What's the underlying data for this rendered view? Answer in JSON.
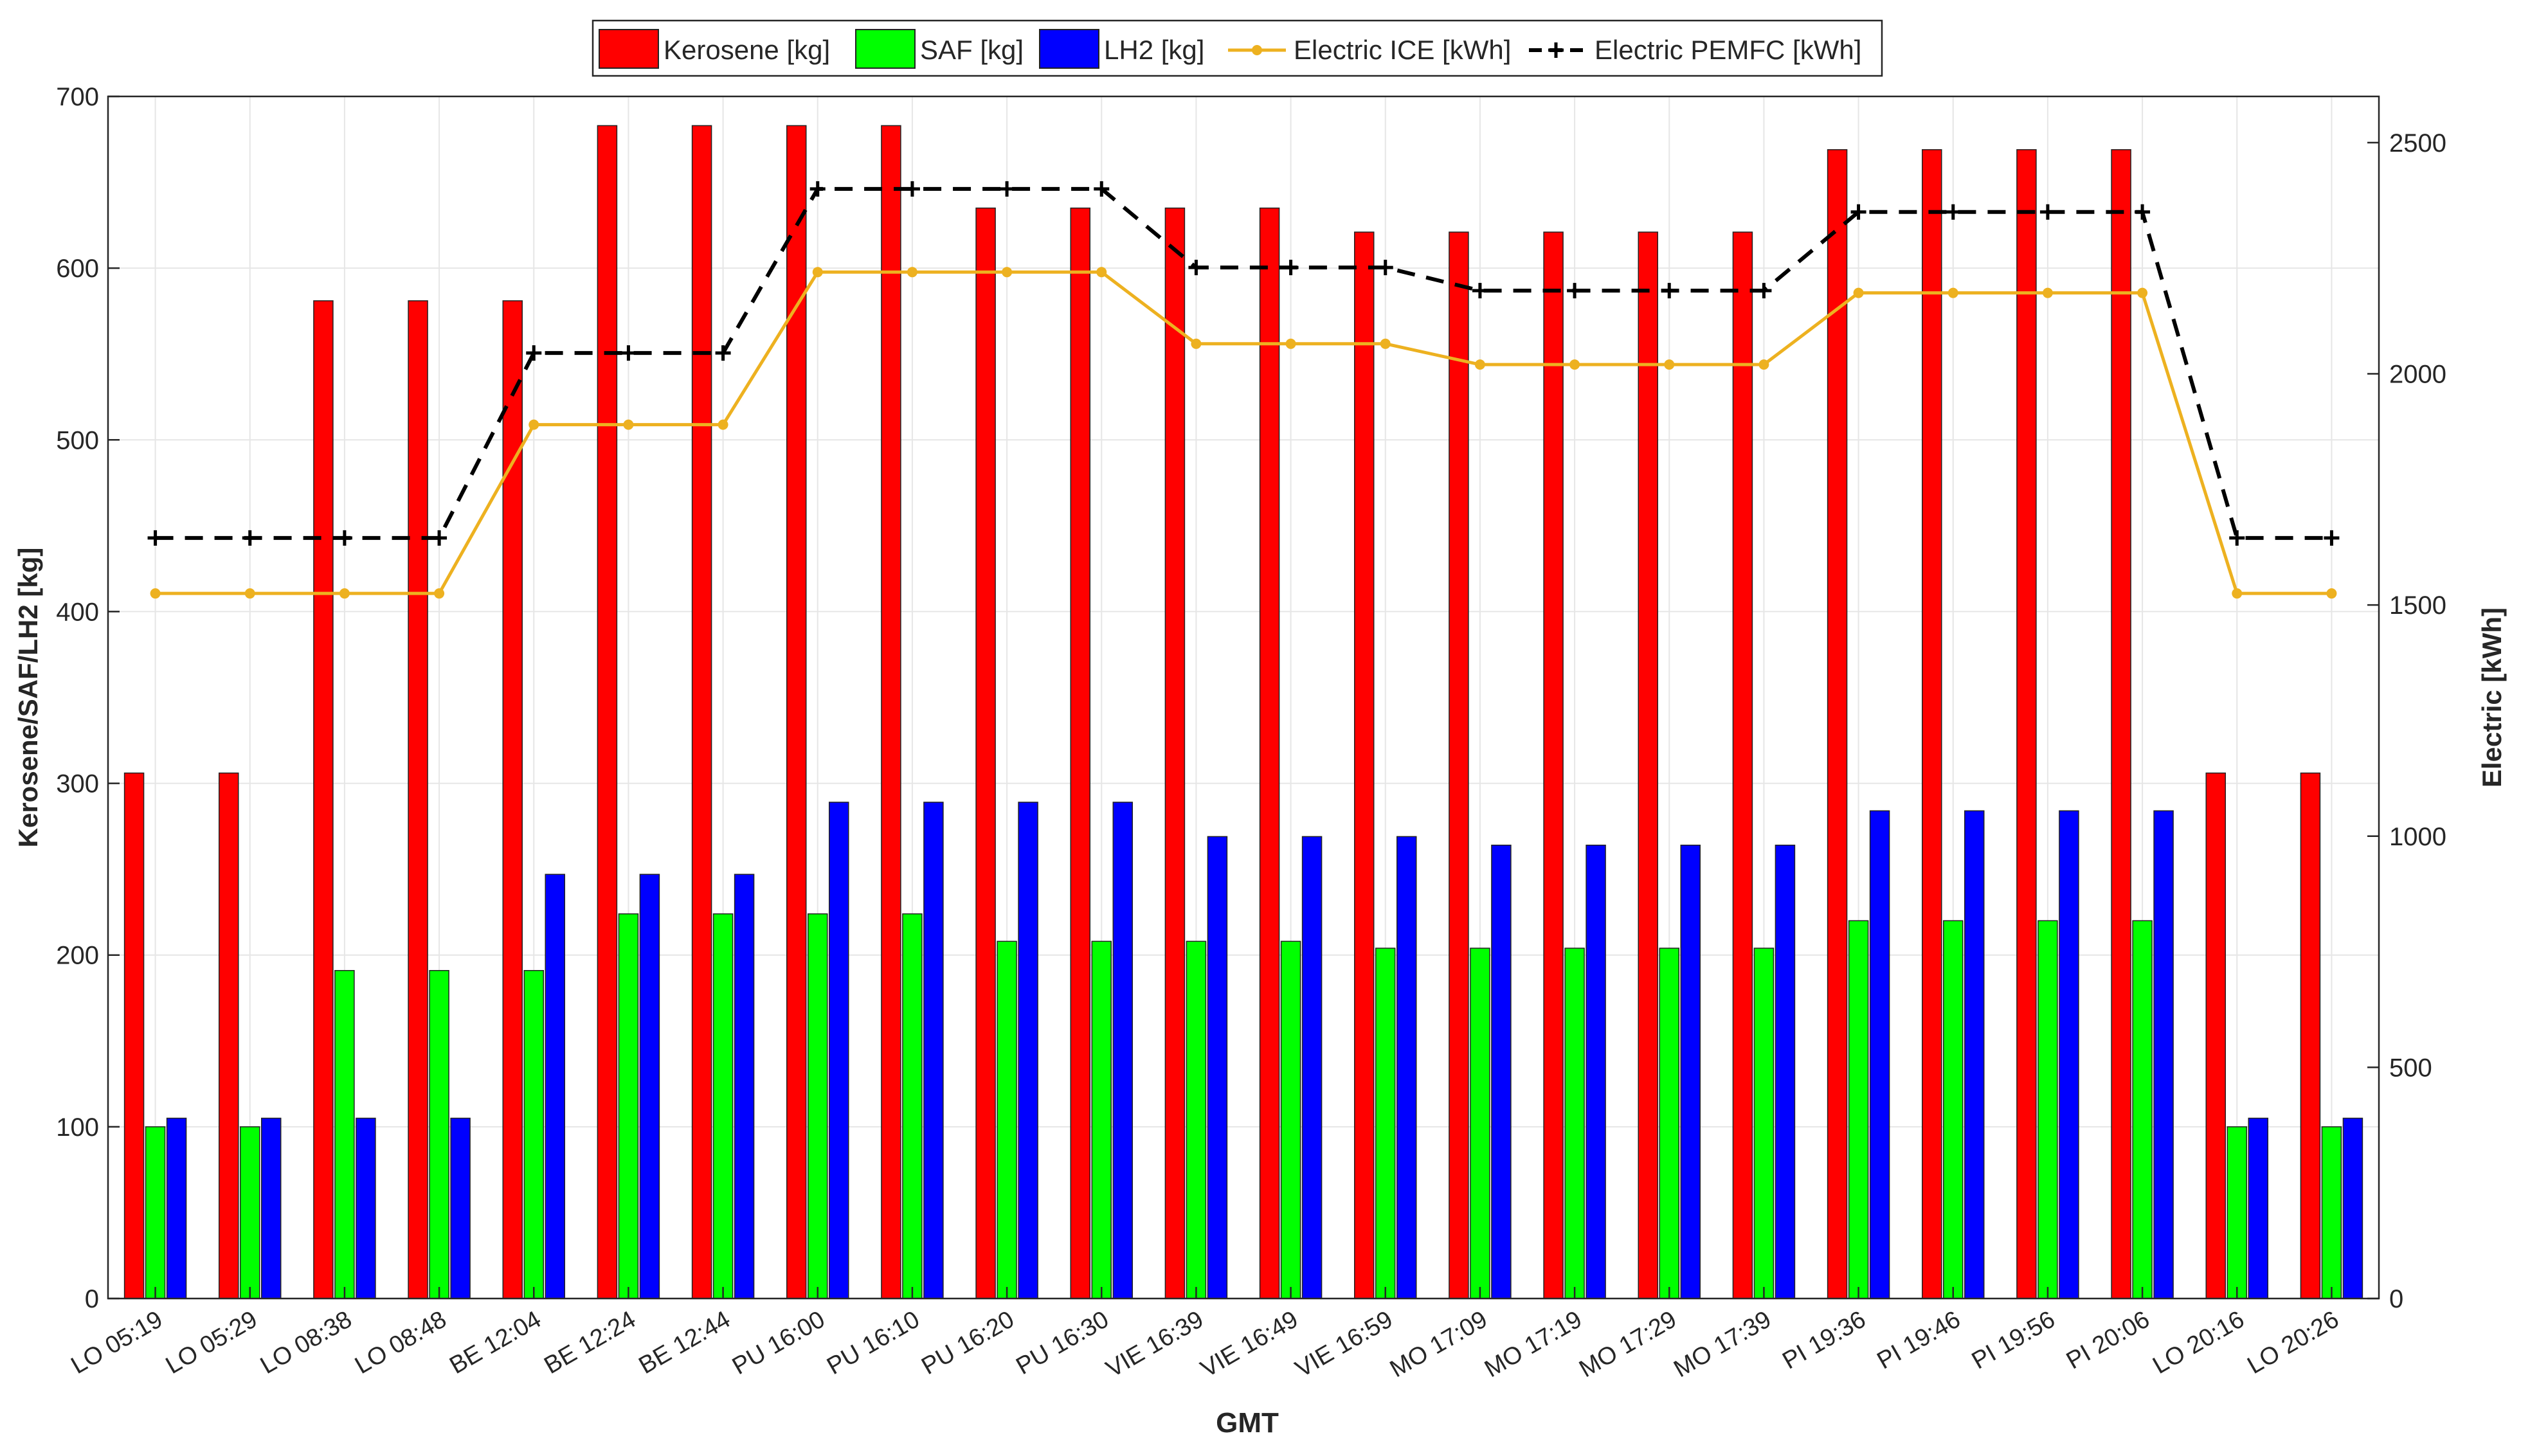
{
  "chart_data": {
    "type": "bar",
    "title": "",
    "xlabel": "GMT",
    "ylabel": "Kerosene/SAF/LH2 [kg]",
    "y2label": "Electric [kWh]",
    "ylim": [
      0,
      700
    ],
    "y2lim": [
      0,
      2600
    ],
    "yticks": [
      0,
      100,
      200,
      300,
      400,
      500,
      600,
      700
    ],
    "y2ticks": [
      0,
      500,
      1000,
      1500,
      2000,
      2500
    ],
    "grid": true,
    "legend_position": "top-center",
    "categories": [
      "LO 05:19",
      "LO 05:29",
      "LO 08:38",
      "LO 08:48",
      "BE 12:04",
      "BE 12:24",
      "BE 12:44",
      "PU 16:00",
      "PU 16:10",
      "PU 16:20",
      "PU 16:30",
      "VIE 16:39",
      "VIE 16:49",
      "VIE 16:59",
      "MO 17:09",
      "MO 17:19",
      "MO 17:29",
      "MO 17:39",
      "PI 19:36",
      "PI 19:46",
      "PI 19:56",
      "PI 20:06",
      "LO 20:16",
      "LO 20:26"
    ],
    "series": [
      {
        "name": "Kerosene [kg]",
        "type": "bar",
        "axis": "left",
        "color": "#ff0000",
        "values": [
          306,
          306,
          581,
          581,
          581,
          683,
          683,
          683,
          683,
          635,
          635,
          635,
          635,
          621,
          621,
          621,
          621,
          621,
          669,
          669,
          669,
          669,
          306,
          306
        ]
      },
      {
        "name": "SAF [kg]",
        "type": "bar",
        "axis": "left",
        "color": "#00ff00",
        "values": [
          100,
          100,
          191,
          191,
          191,
          224,
          224,
          224,
          224,
          208,
          208,
          208,
          208,
          204,
          204,
          204,
          204,
          204,
          220,
          220,
          220,
          220,
          100,
          100
        ]
      },
      {
        "name": "LH2 [kg]",
        "type": "bar",
        "axis": "left",
        "color": "#0000ff",
        "values": [
          105,
          105,
          105,
          105,
          247,
          247,
          247,
          289,
          289,
          289,
          289,
          269,
          269,
          269,
          264,
          264,
          264,
          264,
          284,
          284,
          284,
          284,
          105,
          105
        ]
      },
      {
        "name": "Electric ICE [kWh]",
        "type": "line",
        "axis": "right",
        "color": "#edb120",
        "marker": "dot",
        "values": [
          1525,
          1525,
          1525,
          1525,
          1890,
          1890,
          1890,
          2220,
          2220,
          2220,
          2220,
          2065,
          2065,
          2065,
          2020,
          2020,
          2020,
          2020,
          2175,
          2175,
          2175,
          2175,
          1525,
          1525
        ]
      },
      {
        "name": "Electric PEMFC [kWh]",
        "type": "line",
        "axis": "right",
        "color": "#000000",
        "dashed": true,
        "marker": "plus",
        "values": [
          1645,
          1645,
          1645,
          1645,
          2045,
          2045,
          2045,
          2400,
          2400,
          2400,
          2400,
          2230,
          2230,
          2230,
          2180,
          2180,
          2180,
          2180,
          2350,
          2350,
          2350,
          2350,
          1645,
          1645
        ]
      }
    ]
  }
}
